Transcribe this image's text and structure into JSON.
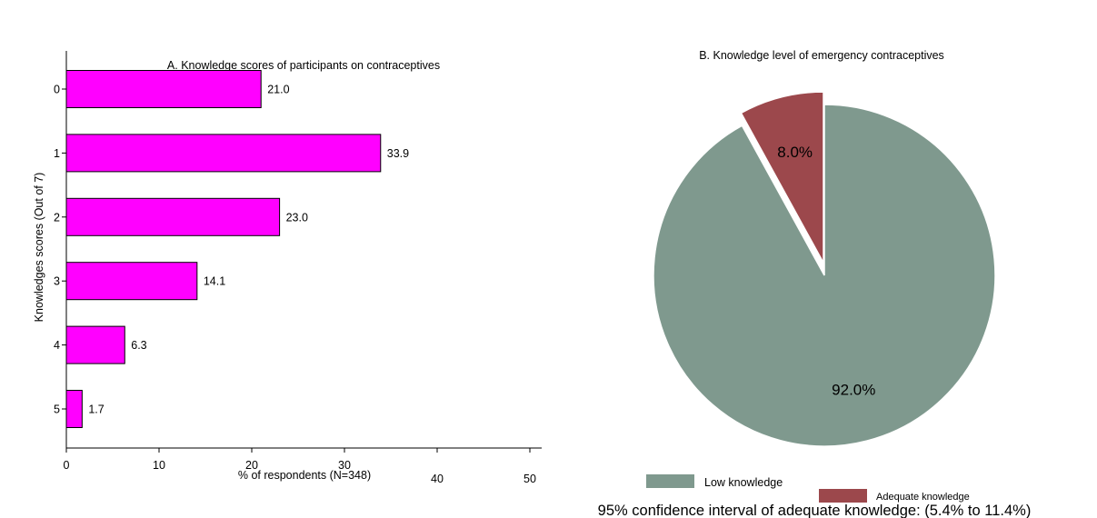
{
  "chart_data": [
    {
      "type": "bar",
      "orientation": "horizontal",
      "title": "A. Knowledge scores of participants on contraceptives",
      "xlabel": "% of respondents (N=348)",
      "ylabel": "Knowledges scores (Out of 7)",
      "categories": [
        "0",
        "1",
        "2",
        "3",
        "4",
        "5"
      ],
      "values": [
        21.0,
        33.9,
        23.0,
        14.1,
        6.3,
        1.7
      ],
      "data_labels": [
        "21.0",
        "33.9",
        "23.0",
        "14.1",
        "6.3",
        "1.7"
      ],
      "xlim": [
        0,
        50
      ],
      "xticks": [
        "0",
        "10",
        "20",
        "30",
        "40",
        "50"
      ],
      "bar_color": "#ff00ff",
      "grid": false
    },
    {
      "type": "pie",
      "title": "B. Knowledge level of emergency contraceptives",
      "labels": [
        "Low knowledge",
        "Adequate knowledge"
      ],
      "values": [
        92.0,
        8.0
      ],
      "data_labels": [
        "92.0%",
        "8.0%"
      ],
      "colors": [
        "#7f998e",
        "#9c484c"
      ],
      "exploded": "Adequate knowledge",
      "legend_position": "bottom",
      "footnote": "95% confidence interval of adequate knowledge: (5.4% to 11.4%)"
    }
  ]
}
